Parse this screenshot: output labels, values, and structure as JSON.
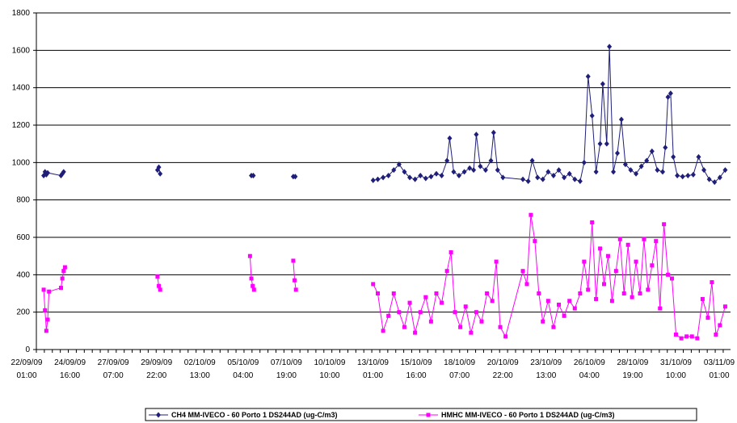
{
  "chart_data": {
    "type": "line",
    "title": "",
    "xlabel": "",
    "ylabel": "",
    "ylim": [
      0,
      1800
    ],
    "yticks": [
      0,
      200,
      400,
      600,
      800,
      1000,
      1200,
      1400,
      1600,
      1800
    ],
    "xlim": [
      "2009-09-22T01:00",
      "2009-11-04T12:00"
    ],
    "xtick_labels": [
      [
        "22/09/09",
        "01:00"
      ],
      [
        "24/09/09",
        "16:00"
      ],
      [
        "27/09/09",
        "07:00"
      ],
      [
        "29/09/09",
        "22:00"
      ],
      [
        "02/10/09",
        "13:00"
      ],
      [
        "05/10/09",
        "04:00"
      ],
      [
        "07/10/09",
        "19:00"
      ],
      [
        "10/10/09",
        "10:00"
      ],
      [
        "13/10/09",
        "01:00"
      ],
      [
        "15/10/09",
        "16:00"
      ],
      [
        "18/10/09",
        "07:00"
      ],
      [
        "20/10/09",
        "22:00"
      ],
      [
        "23/10/09",
        "13:00"
      ],
      [
        "26/10/09",
        "04:00"
      ],
      [
        "28/10/09",
        "19:00"
      ],
      [
        "31/10/09",
        "10:00"
      ],
      [
        "03/11/09",
        "01:00"
      ]
    ],
    "grid": "horizontal",
    "legend_position": "bottom",
    "series": [
      {
        "name": "CH4 MM-IVECO - 60 Porto 1 DS244AD (ug-C/m3)",
        "color": "#1f1f7a",
        "marker": "diamond",
        "points": [
          [
            "2009-09-22T12:00",
            930
          ],
          [
            "2009-09-22T14:00",
            950
          ],
          [
            "2009-09-22T16:00",
            935
          ],
          [
            "2009-09-22T18:00",
            945
          ],
          [
            "2009-09-23T14:00",
            930
          ],
          [
            "2009-09-23T16:00",
            940
          ],
          [
            "2009-09-23T18:00",
            950
          ],
          [
            "2009-09-29T15:00",
            960
          ],
          [
            "2009-09-29T17:00",
            975
          ],
          [
            "2009-09-29T19:00",
            940
          ],
          [
            "2009-10-05T12:00",
            930
          ],
          [
            "2009-10-05T15:00",
            930
          ],
          [
            "2009-10-08T03:00",
            925
          ],
          [
            "2009-10-08T06:00",
            925
          ],
          [
            "2009-10-13T03:00",
            905
          ],
          [
            "2009-10-13T10:00",
            910
          ],
          [
            "2009-10-13T18:00",
            920
          ],
          [
            "2009-10-14T02:00",
            930
          ],
          [
            "2009-10-14T10:00",
            960
          ],
          [
            "2009-10-14T18:00",
            990
          ],
          [
            "2009-10-15T02:00",
            950
          ],
          [
            "2009-10-15T10:00",
            920
          ],
          [
            "2009-10-15T18:00",
            910
          ],
          [
            "2009-10-16T02:00",
            930
          ],
          [
            "2009-10-16T10:00",
            915
          ],
          [
            "2009-10-16T18:00",
            925
          ],
          [
            "2009-10-17T02:00",
            940
          ],
          [
            "2009-10-17T10:00",
            930
          ],
          [
            "2009-10-17T18:00",
            1010
          ],
          [
            "2009-10-17T22:00",
            1130
          ],
          [
            "2009-10-18T04:00",
            950
          ],
          [
            "2009-10-18T12:00",
            930
          ],
          [
            "2009-10-18T20:00",
            950
          ],
          [
            "2009-10-19T04:00",
            970
          ],
          [
            "2009-10-19T10:00",
            960
          ],
          [
            "2009-10-19T14:00",
            1150
          ],
          [
            "2009-10-19T20:00",
            980
          ],
          [
            "2009-10-20T04:00",
            960
          ],
          [
            "2009-10-20T12:00",
            1010
          ],
          [
            "2009-10-20T16:00",
            1160
          ],
          [
            "2009-10-20T22:00",
            960
          ],
          [
            "2009-10-21T06:00",
            920
          ],
          [
            "2009-10-22T12:00",
            910
          ],
          [
            "2009-10-22T20:00",
            900
          ],
          [
            "2009-10-23T02:00",
            1010
          ],
          [
            "2009-10-23T10:00",
            920
          ],
          [
            "2009-10-23T18:00",
            910
          ],
          [
            "2009-10-24T02:00",
            950
          ],
          [
            "2009-10-24T10:00",
            930
          ],
          [
            "2009-10-24T18:00",
            960
          ],
          [
            "2009-10-25T02:00",
            920
          ],
          [
            "2009-10-25T10:00",
            940
          ],
          [
            "2009-10-25T18:00",
            910
          ],
          [
            "2009-10-26T02:00",
            900
          ],
          [
            "2009-10-26T08:00",
            1000
          ],
          [
            "2009-10-26T14:00",
            1460
          ],
          [
            "2009-10-26T20:00",
            1250
          ],
          [
            "2009-10-27T02:00",
            950
          ],
          [
            "2009-10-27T08:00",
            1100
          ],
          [
            "2009-10-27T12:00",
            1420
          ],
          [
            "2009-10-27T18:00",
            1100
          ],
          [
            "2009-10-27T22:00",
            1620
          ],
          [
            "2009-10-28T04:00",
            950
          ],
          [
            "2009-10-28T10:00",
            1050
          ],
          [
            "2009-10-28T16:00",
            1230
          ],
          [
            "2009-10-28T22:00",
            990
          ],
          [
            "2009-10-29T06:00",
            960
          ],
          [
            "2009-10-29T14:00",
            940
          ],
          [
            "2009-10-29T22:00",
            980
          ],
          [
            "2009-10-30T06:00",
            1010
          ],
          [
            "2009-10-30T14:00",
            1060
          ],
          [
            "2009-10-30T22:00",
            960
          ],
          [
            "2009-10-31T06:00",
            950
          ],
          [
            "2009-10-31T10:00",
            1080
          ],
          [
            "2009-10-31T14:00",
            1350
          ],
          [
            "2009-10-31T18:00",
            1370
          ],
          [
            "2009-10-31T22:00",
            1030
          ],
          [
            "2009-11-01T04:00",
            930
          ],
          [
            "2009-11-01T12:00",
            925
          ],
          [
            "2009-11-01T20:00",
            930
          ],
          [
            "2009-11-02T04:00",
            935
          ],
          [
            "2009-11-02T12:00",
            1030
          ],
          [
            "2009-11-02T20:00",
            960
          ],
          [
            "2009-11-03T04:00",
            910
          ],
          [
            "2009-11-03T12:00",
            895
          ],
          [
            "2009-11-03T20:00",
            920
          ],
          [
            "2009-11-04T04:00",
            960
          ]
        ]
      },
      {
        "name": "HMHC MM-IVECO - 60 Porto 1 DS244AD (ug-C/m3)",
        "color": "#ff00ff",
        "marker": "square",
        "points": [
          [
            "2009-09-22T12:00",
            320
          ],
          [
            "2009-09-22T14:00",
            210
          ],
          [
            "2009-09-22T16:00",
            100
          ],
          [
            "2009-09-22T18:00",
            160
          ],
          [
            "2009-09-22T20:00",
            310
          ],
          [
            "2009-09-23T14:00",
            330
          ],
          [
            "2009-09-23T16:00",
            380
          ],
          [
            "2009-09-23T18:00",
            420
          ],
          [
            "2009-09-23T20:00",
            440
          ],
          [
            "2009-09-29T15:00",
            390
          ],
          [
            "2009-09-29T17:00",
            340
          ],
          [
            "2009-09-29T19:00",
            320
          ],
          [
            "2009-10-05T10:00",
            500
          ],
          [
            "2009-10-05T12:00",
            380
          ],
          [
            "2009-10-05T14:00",
            340
          ],
          [
            "2009-10-05T16:00",
            320
          ],
          [
            "2009-10-08T03:00",
            475
          ],
          [
            "2009-10-08T05:00",
            370
          ],
          [
            "2009-10-08T07:00",
            320
          ],
          [
            "2009-10-13T03:00",
            350
          ],
          [
            "2009-10-13T10:00",
            300
          ],
          [
            "2009-10-13T18:00",
            100
          ],
          [
            "2009-10-14T02:00",
            180
          ],
          [
            "2009-10-14T10:00",
            300
          ],
          [
            "2009-10-14T18:00",
            200
          ],
          [
            "2009-10-15T02:00",
            120
          ],
          [
            "2009-10-15T10:00",
            250
          ],
          [
            "2009-10-15T18:00",
            90
          ],
          [
            "2009-10-16T02:00",
            200
          ],
          [
            "2009-10-16T10:00",
            280
          ],
          [
            "2009-10-16T18:00",
            150
          ],
          [
            "2009-10-17T02:00",
            300
          ],
          [
            "2009-10-17T10:00",
            250
          ],
          [
            "2009-10-17T18:00",
            420
          ],
          [
            "2009-10-18T00:00",
            520
          ],
          [
            "2009-10-18T06:00",
            200
          ],
          [
            "2009-10-18T14:00",
            120
          ],
          [
            "2009-10-18T22:00",
            230
          ],
          [
            "2009-10-19T06:00",
            90
          ],
          [
            "2009-10-19T14:00",
            200
          ],
          [
            "2009-10-19T22:00",
            150
          ],
          [
            "2009-10-20T06:00",
            300
          ],
          [
            "2009-10-20T14:00",
            260
          ],
          [
            "2009-10-20T20:00",
            470
          ],
          [
            "2009-10-21T02:00",
            120
          ],
          [
            "2009-10-21T10:00",
            70
          ],
          [
            "2009-10-22T12:00",
            420
          ],
          [
            "2009-10-22T18:00",
            350
          ],
          [
            "2009-10-23T00:00",
            720
          ],
          [
            "2009-10-23T06:00",
            580
          ],
          [
            "2009-10-23T12:00",
            300
          ],
          [
            "2009-10-23T18:00",
            150
          ],
          [
            "2009-10-24T02:00",
            260
          ],
          [
            "2009-10-24T10:00",
            120
          ],
          [
            "2009-10-24T18:00",
            240
          ],
          [
            "2009-10-25T02:00",
            180
          ],
          [
            "2009-10-25T10:00",
            260
          ],
          [
            "2009-10-25T18:00",
            220
          ],
          [
            "2009-10-26T02:00",
            300
          ],
          [
            "2009-10-26T08:00",
            470
          ],
          [
            "2009-10-26T14:00",
            320
          ],
          [
            "2009-10-26T20:00",
            680
          ],
          [
            "2009-10-27T02:00",
            270
          ],
          [
            "2009-10-27T08:00",
            540
          ],
          [
            "2009-10-27T14:00",
            350
          ],
          [
            "2009-10-27T20:00",
            500
          ],
          [
            "2009-10-28T02:00",
            260
          ],
          [
            "2009-10-28T08:00",
            420
          ],
          [
            "2009-10-28T14:00",
            590
          ],
          [
            "2009-10-28T20:00",
            300
          ],
          [
            "2009-10-29T02:00",
            560
          ],
          [
            "2009-10-29T08:00",
            280
          ],
          [
            "2009-10-29T14:00",
            470
          ],
          [
            "2009-10-29T20:00",
            300
          ],
          [
            "2009-10-30T02:00",
            590
          ],
          [
            "2009-10-30T08:00",
            320
          ],
          [
            "2009-10-30T14:00",
            450
          ],
          [
            "2009-10-30T20:00",
            580
          ],
          [
            "2009-10-31T02:00",
            220
          ],
          [
            "2009-10-31T08:00",
            670
          ],
          [
            "2009-10-31T14:00",
            400
          ],
          [
            "2009-10-31T20:00",
            380
          ],
          [
            "2009-11-01T02:00",
            80
          ],
          [
            "2009-11-01T10:00",
            60
          ],
          [
            "2009-11-01T18:00",
            70
          ],
          [
            "2009-11-02T02:00",
            70
          ],
          [
            "2009-11-02T10:00",
            60
          ],
          [
            "2009-11-02T18:00",
            270
          ],
          [
            "2009-11-03T02:00",
            170
          ],
          [
            "2009-11-03T08:00",
            360
          ],
          [
            "2009-11-03T14:00",
            80
          ],
          [
            "2009-11-03T20:00",
            130
          ],
          [
            "2009-11-04T04:00",
            230
          ]
        ]
      }
    ]
  }
}
